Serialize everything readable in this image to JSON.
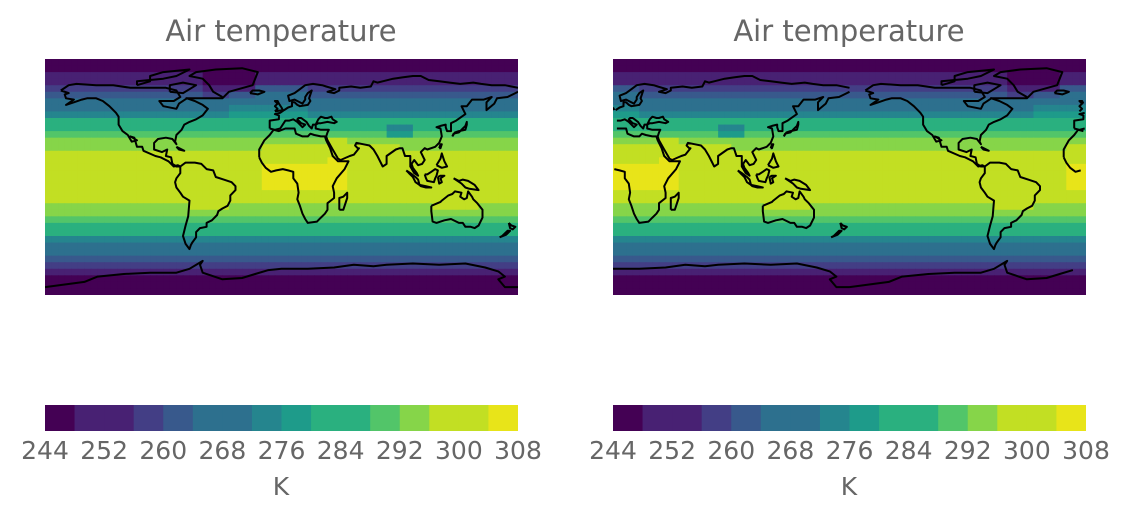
{
  "chart_data": [
    {
      "type": "heatmap",
      "title": "Air temperature",
      "projection": "PlateCarree",
      "central_longitude": 0,
      "lon_range": [
        -180,
        180
      ],
      "lat_range": [
        -90,
        90
      ],
      "coastlines": true,
      "colormap": "viridis",
      "colorbar": {
        "orientation": "horizontal",
        "label": "K",
        "ticks": [
          244,
          252,
          260,
          268,
          276,
          284,
          292,
          300,
          308
        ],
        "tick_labels": [
          "244",
          "252",
          "260",
          "268",
          "276",
          "284",
          "292",
          "300",
          "308"
        ],
        "levels": [
          244,
          248,
          252,
          256,
          260,
          264,
          268,
          272,
          276,
          280,
          284,
          288,
          292,
          296,
          300,
          304,
          308
        ],
        "range": [
          244,
          308
        ]
      }
    },
    {
      "type": "heatmap",
      "title": "Air temperature",
      "projection": "PlateCarree",
      "central_longitude": 180,
      "lon_range": [
        0,
        360
      ],
      "lat_range": [
        -90,
        90
      ],
      "coastlines": true,
      "colormap": "viridis",
      "colorbar": {
        "orientation": "horizontal",
        "label": "K",
        "ticks": [
          244,
          252,
          260,
          268,
          276,
          284,
          292,
          300,
          308
        ],
        "tick_labels": [
          "244",
          "252",
          "260",
          "268",
          "276",
          "284",
          "292",
          "300",
          "308"
        ],
        "levels": [
          244,
          248,
          252,
          256,
          260,
          264,
          268,
          272,
          276,
          280,
          284,
          288,
          292,
          296,
          300,
          304,
          308
        ],
        "range": [
          244,
          308
        ]
      }
    }
  ],
  "colors": {
    "viridis_bins": [
      "#440154",
      "#482173",
      "#433e85",
      "#38598c",
      "#2d708e",
      "#25858e",
      "#1e9b8a",
      "#2ab07f",
      "#52c569",
      "#86d549",
      "#c2df23",
      "#e8e419"
    ],
    "coastline": "#000000",
    "text": "#666666"
  }
}
